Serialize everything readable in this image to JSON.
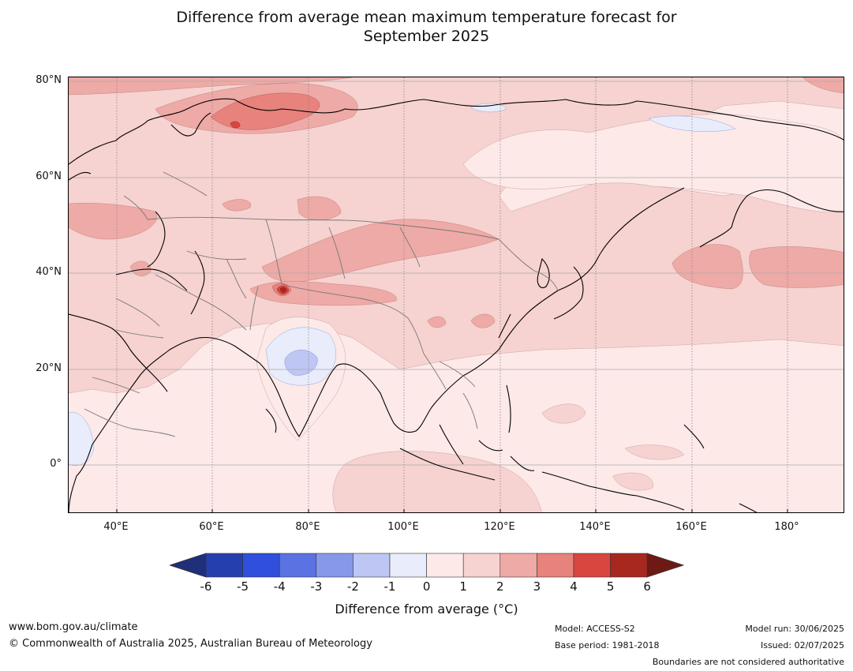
{
  "title_line1": "Difference from average mean maximum temperature forecast for",
  "title_line2": "September 2025",
  "lat_labels": [
    "80°N",
    "60°N",
    "40°N",
    "20°N",
    "0°"
  ],
  "lon_labels": [
    "40°E",
    "60°E",
    "80°E",
    "100°E",
    "120°E",
    "140°E",
    "160°E",
    "180°"
  ],
  "colorbar": {
    "ticks": [
      "-6",
      "-5",
      "-4",
      "-3",
      "-2",
      "-1",
      "0",
      "1",
      "2",
      "3",
      "4",
      "5",
      "6"
    ],
    "colors": [
      "#1f2f7a",
      "#263fae",
      "#2f4fdc",
      "#5b72e3",
      "#8797ea",
      "#bec6f3",
      "#e8ecfb",
      "#fce9e8",
      "#f6d2d0",
      "#eeaaa6",
      "#e7827c",
      "#d9463f",
      "#a8271f",
      "#6e1a14"
    ],
    "label": "Difference from average (°C)"
  },
  "footer": {
    "website": "www.bom.gov.au/climate",
    "copyright": "© Commonwealth of Australia 2025, Australian Bureau of Meteorology",
    "model": "Model: ACCESS-S2",
    "base_period": "Base period: 1981-2018",
    "model_run": "Model run: 30/06/2025",
    "issued": "Issued: 02/07/2025",
    "boundaries": "Boundaries are not considered authoritative"
  }
}
